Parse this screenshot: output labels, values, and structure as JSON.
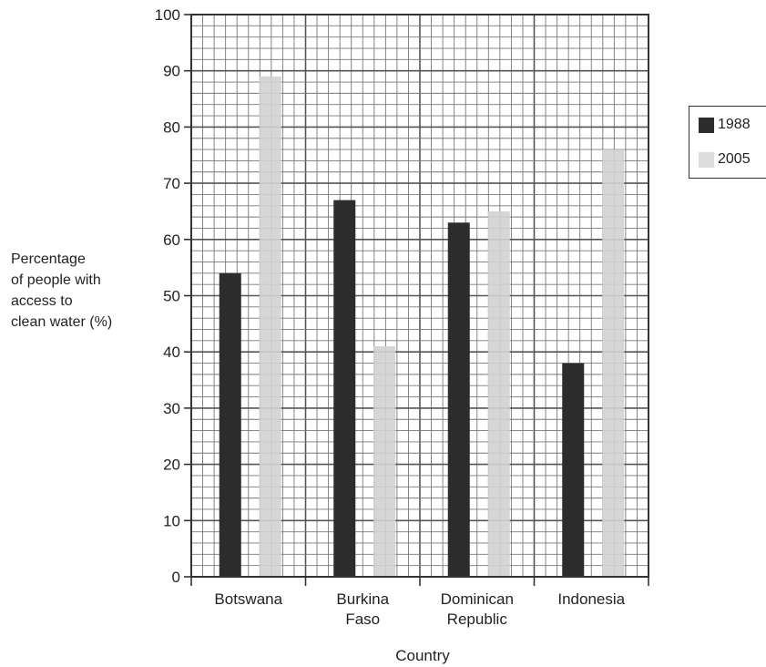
{
  "chart_data": {
    "type": "bar",
    "categories": [
      [
        "Botswana"
      ],
      [
        "Burkina",
        "Faso"
      ],
      [
        "Dominican",
        "Republic"
      ],
      [
        "Indonesia"
      ]
    ],
    "series": [
      {
        "name": "1988",
        "values": [
          54,
          67,
          63,
          38
        ],
        "color": "#2c2c2c"
      },
      {
        "name": "2005",
        "values": [
          89,
          41,
          65,
          76
        ],
        "color": "#d2d2d2"
      }
    ],
    "ylabel": [
      "Percentage",
      "of people with",
      "access to",
      "clean water (%)"
    ],
    "xlabel": "Country",
    "ylim": [
      0,
      100
    ],
    "yticks": [
      0,
      10,
      20,
      30,
      40,
      50,
      60,
      70,
      80,
      90,
      100
    ],
    "minor_grid_step": 2,
    "grid": true,
    "legend_position": "right"
  }
}
